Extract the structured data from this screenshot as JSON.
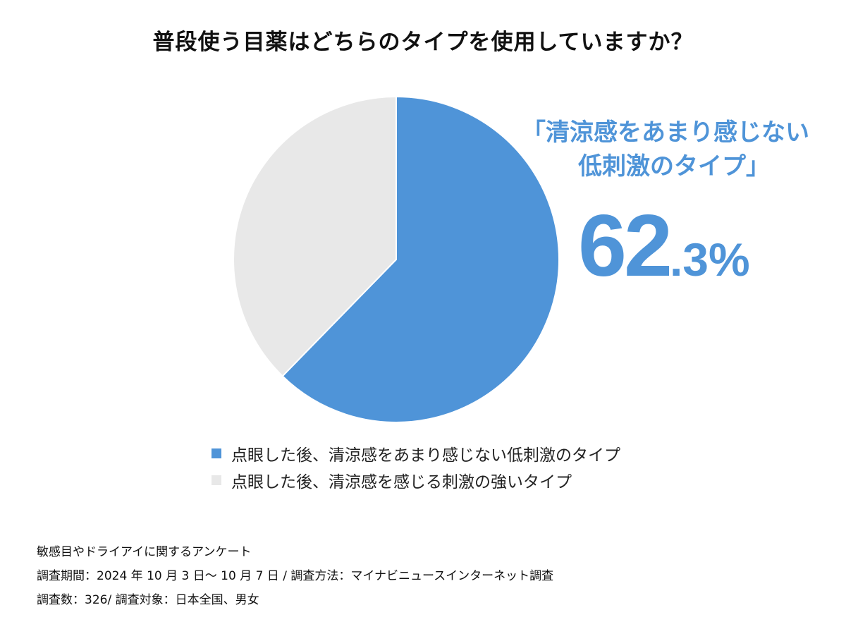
{
  "title": "普段使う目薬はどちらのタイプを使用していますか？",
  "callout": {
    "line1": "「清涼感をあまり感じない",
    "line2": "低刺激のタイプ」",
    "percent_int": "62",
    "percent_dec": ".3%"
  },
  "colors": {
    "low_stimulus": "#4f94d8",
    "strong_stimulus": "#e8e8e8",
    "callout": "#4f94d8"
  },
  "chart_data": {
    "type": "pie",
    "title": "普段使う目薬はどちらのタイプを使用していますか？",
    "slices": [
      {
        "label": "点眼した後、清涼感をあまり感じない低刺激のタイプ",
        "value": 62.3,
        "color": "#4f94d8"
      },
      {
        "label": "点眼した後、清涼感を感じる刺激の強いタイプ",
        "value": 37.7,
        "color": "#e8e8e8"
      }
    ],
    "legend_position": "bottom"
  },
  "legend": [
    {
      "label": "点眼した後、清涼感をあまり感じない低刺激のタイプ"
    },
    {
      "label": "点眼した後、清涼感を感じる刺激の強いタイプ"
    }
  ],
  "footer": {
    "line1": "敏感目やドライアイに関するアンケート",
    "line2": "調査期間：2024 年 10 月 3 日～ 10 月 7 日 / 調査方法：マイナビニュースインターネット調査",
    "line3": "調査数：326/ 調査対象：日本全国、男女"
  }
}
